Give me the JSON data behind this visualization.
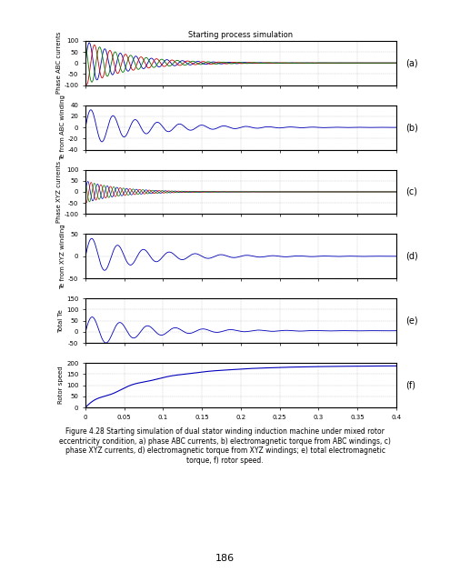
{
  "title": "Starting process simulation",
  "xlim": [
    0,
    0.4
  ],
  "xticks": [
    0,
    0.05,
    0.1,
    0.15,
    0.2,
    0.25,
    0.3,
    0.35,
    0.4
  ],
  "subplots": [
    {
      "label": "(a)",
      "ylabel": "Phase ABC currents",
      "ylim": [
        -100,
        100
      ],
      "yticks": [
        -100,
        -50,
        0,
        50,
        100
      ],
      "num_lines": 3,
      "colors": [
        "#0000cc",
        "#cc0000",
        "#008800"
      ],
      "decay": 0.08,
      "amplitude": 100,
      "freq": 50,
      "steady_val": 0
    },
    {
      "label": "(b)",
      "ylabel": "Te from ABC winding",
      "ylim": [
        -40,
        40
      ],
      "yticks": [
        -40,
        -20,
        0,
        20,
        40
      ],
      "num_lines": 1,
      "colors": [
        "#0000cc"
      ],
      "decay": 0.1,
      "amplitude": 35,
      "freq": 30,
      "steady_val": 0
    },
    {
      "label": "(c)",
      "ylabel": "Phase XYZ currents",
      "ylim": [
        -100,
        100
      ],
      "yticks": [
        -100,
        -50,
        0,
        50,
        100
      ],
      "num_lines": 3,
      "colors": [
        "#0000cc",
        "#cc0000",
        "#008800"
      ],
      "decay": 0.07,
      "amplitude": 50,
      "freq": 80,
      "steady_val": 0
    },
    {
      "label": "(d)",
      "ylabel": "Te from XYZ winding",
      "ylim": [
        -50,
        50
      ],
      "yticks": [
        -50,
        0,
        50
      ],
      "num_lines": 1,
      "colors": [
        "#0000cc"
      ],
      "decay": 0.1,
      "amplitude": 50,
      "freq": 25,
      "steady_val": 0
    },
    {
      "label": "(e)",
      "ylabel": "Total Te",
      "ylim": [
        -50,
        150
      ],
      "yticks": [
        -50,
        0,
        50,
        100,
        150
      ],
      "num_lines": 1,
      "colors": [
        "#0000cc"
      ],
      "decay": 0.1,
      "amplitude": 80,
      "freq": 25,
      "steady_val": 0
    },
    {
      "label": "(f)",
      "ylabel": "Rotor speed",
      "ylim": [
        0,
        200
      ],
      "yticks": [
        0,
        50,
        100,
        150,
        200
      ],
      "num_lines": 1,
      "colors": [
        "#0000cc"
      ],
      "steady_val": 188
    }
  ],
  "caption": "Figure 4.28 Starting simulation of dual stator winding induction machine under mixed rotor\neccentricity condition, a) phase ABC currents, b) electromagnetic torque from ABC windings, c)\nphase XYZ currents, d) electromagnetic torque from XYZ windings; e) total electromagnetic\ntorque, f) rotor speed.",
  "page_number": "186",
  "bg_color": "#ffffff",
  "line_color_blue": "#0000bb",
  "line_color_red": "#cc0000",
  "line_color_green": "#007700"
}
